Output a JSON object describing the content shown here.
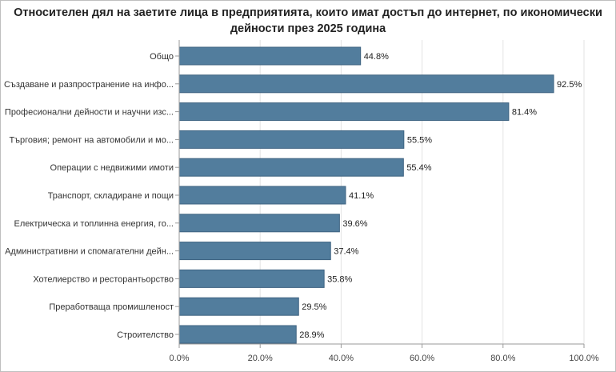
{
  "chart_data": {
    "type": "bar",
    "orientation": "horizontal",
    "title_line1": "Относителен дял на заетите лица в предприятията, които имат достъп до интернет, по икономически",
    "title_line2": "дейности през 2025 година",
    "categories": [
      "Общо",
      "Създаване и разпространение на инфо...",
      "Професионални дейности и научни изс...",
      "Търговия; ремонт на автомобили и мо...",
      "Операции с недвижими имоти",
      "Транспорт, складиране и пощи",
      "Електрическа и топлинна енергия, го...",
      "Административни и спомагателни дейн...",
      "Хотелиерство и ресторантьорство",
      "Преработваща промишленост",
      "Строителство"
    ],
    "values": [
      44.8,
      92.5,
      81.4,
      55.5,
      55.4,
      41.1,
      39.6,
      37.4,
      35.8,
      29.5,
      28.9
    ],
    "value_labels": [
      "44.8%",
      "92.5%",
      "81.4%",
      "55.5%",
      "55.4%",
      "41.1%",
      "39.6%",
      "37.4%",
      "35.8%",
      "29.5%",
      "28.9%"
    ],
    "xlim": [
      0,
      100
    ],
    "ticks": [
      0,
      20,
      40,
      60,
      80,
      100
    ],
    "tick_labels": [
      "0.0%",
      "20.0%",
      "40.0%",
      "60.0%",
      "80.0%",
      "100.0%"
    ],
    "grid": true,
    "bar_color": "#527d9d",
    "bar_edge_color": "#3e6381"
  }
}
